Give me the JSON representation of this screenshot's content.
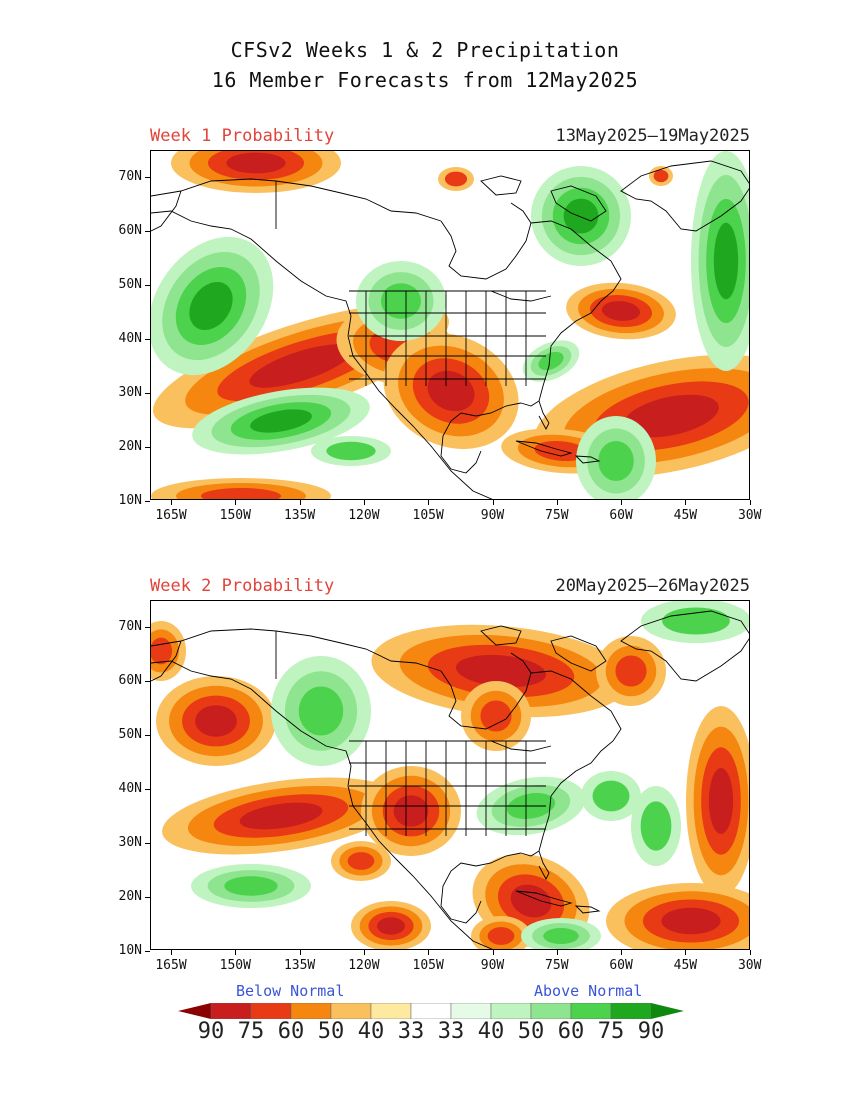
{
  "title_line1": "CFSv2 Weeks 1 & 2 Precipitation",
  "title_line2": "16 Member Forecasts from 12May2025",
  "panels": [
    {
      "label": "Week 1 Probability",
      "dates": "13May2025–19May2025"
    },
    {
      "label": "Week 2 Probability",
      "dates": "20May2025–26May2025"
    }
  ],
  "lat_labels": [
    "70N",
    "60N",
    "50N",
    "40N",
    "30N",
    "20N",
    "10N"
  ],
  "lon_labels": [
    "165W",
    "150W",
    "135W",
    "120W",
    "105W",
    "90W",
    "75W",
    "60W",
    "45W",
    "30W"
  ],
  "legend": {
    "below_label": "Below Normal",
    "above_label": "Above Normal",
    "values": [
      "90",
      "75",
      "60",
      "50",
      "40",
      "33",
      "33",
      "40",
      "50",
      "60",
      "75",
      "90"
    ],
    "colors": [
      "#8b0000",
      "#c81e1e",
      "#e83a14",
      "#f5860f",
      "#fbc05e",
      "#fde9a0",
      "#ffffff",
      "#e6fbe6",
      "#bff3bf",
      "#8fe58f",
      "#4cd24c",
      "#1fa81f",
      "#0d8a0d"
    ]
  }
}
